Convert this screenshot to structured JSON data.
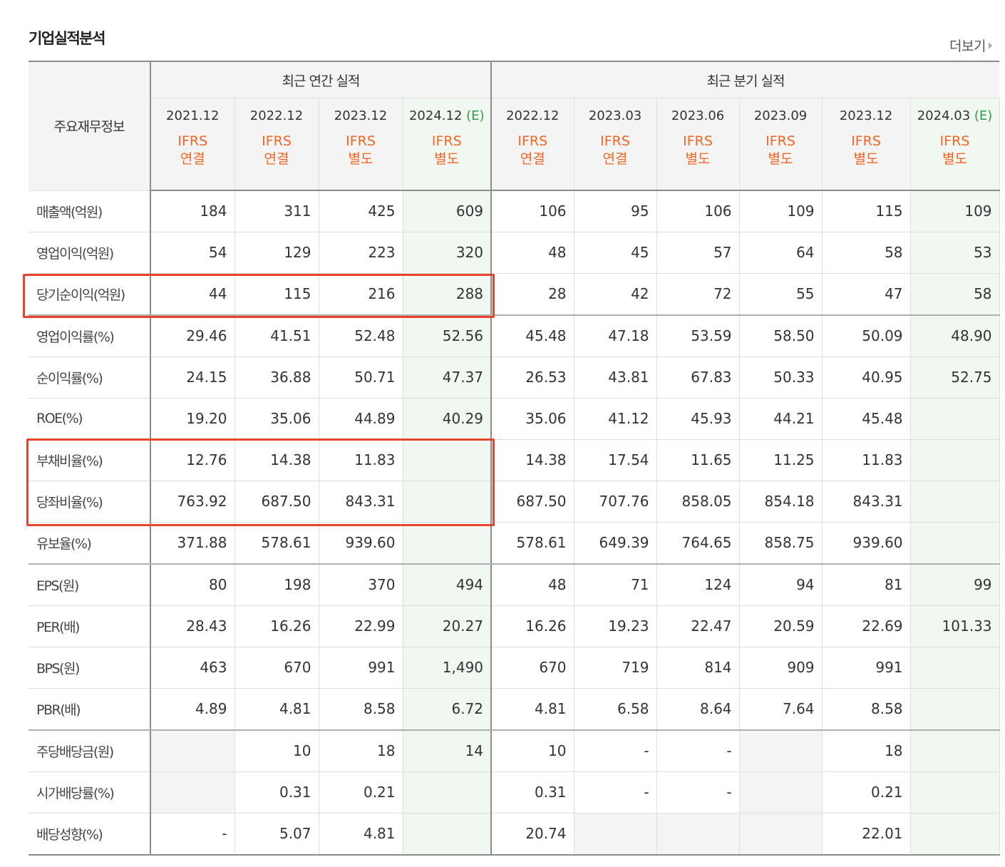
{
  "title": "기업실적분석",
  "more": "더보기",
  "header": {
    "row_label": "주요재무정보",
    "annual_group": "최근 연간 실적",
    "quarter_group": "최근 분기 실적",
    "estimate_mark": "(E)"
  },
  "columns": [
    {
      "period": "2021.12",
      "estimate": false,
      "type_top": "IFRS",
      "type_bottom": "연결"
    },
    {
      "period": "2022.12",
      "estimate": false,
      "type_top": "IFRS",
      "type_bottom": "연결"
    },
    {
      "period": "2023.12",
      "estimate": false,
      "type_top": "IFRS",
      "type_bottom": "별도"
    },
    {
      "period": "2024.12",
      "estimate": true,
      "type_top": "IFRS",
      "type_bottom": "별도"
    },
    {
      "period": "2022.12",
      "estimate": false,
      "type_top": "IFRS",
      "type_bottom": "연결"
    },
    {
      "period": "2023.03",
      "estimate": false,
      "type_top": "IFRS",
      "type_bottom": "연결"
    },
    {
      "period": "2023.06",
      "estimate": false,
      "type_top": "IFRS",
      "type_bottom": "별도"
    },
    {
      "period": "2023.09",
      "estimate": false,
      "type_top": "IFRS",
      "type_bottom": "별도"
    },
    {
      "period": "2023.12",
      "estimate": false,
      "type_top": "IFRS",
      "type_bottom": "별도"
    },
    {
      "period": "2024.03",
      "estimate": true,
      "type_top": "IFRS",
      "type_bottom": "별도"
    }
  ],
  "rows": [
    {
      "label": "매출액(억원)",
      "values": [
        "184",
        "311",
        "425",
        "609",
        "106",
        "95",
        "106",
        "109",
        "115",
        "109"
      ]
    },
    {
      "label": "영업이익(억원)",
      "values": [
        "54",
        "129",
        "223",
        "320",
        "48",
        "45",
        "57",
        "64",
        "58",
        "53"
      ]
    },
    {
      "label": "당기순이익(억원)",
      "values": [
        "44",
        "115",
        "216",
        "288",
        "28",
        "42",
        "72",
        "55",
        "47",
        "58"
      ]
    },
    {
      "label": "영업이익률(%)",
      "values": [
        "29.46",
        "41.51",
        "52.48",
        "52.56",
        "45.48",
        "47.18",
        "53.59",
        "58.50",
        "50.09",
        "48.90"
      ]
    },
    {
      "label": "순이익률(%)",
      "values": [
        "24.15",
        "36.88",
        "50.71",
        "47.37",
        "26.53",
        "43.81",
        "67.83",
        "50.33",
        "40.95",
        "52.75"
      ]
    },
    {
      "label": "ROE(%)",
      "values": [
        "19.20",
        "35.06",
        "44.89",
        "40.29",
        "35.06",
        "41.12",
        "45.93",
        "44.21",
        "45.48",
        ""
      ]
    },
    {
      "label": "부채비율(%)",
      "values": [
        "12.76",
        "14.38",
        "11.83",
        "",
        "14.38",
        "17.54",
        "11.65",
        "11.25",
        "11.83",
        ""
      ]
    },
    {
      "label": "당좌비율(%)",
      "values": [
        "763.92",
        "687.50",
        "843.31",
        "",
        "687.50",
        "707.76",
        "858.05",
        "854.18",
        "843.31",
        ""
      ]
    },
    {
      "label": "유보율(%)",
      "values": [
        "371.88",
        "578.61",
        "939.60",
        "",
        "578.61",
        "649.39",
        "764.65",
        "858.75",
        "939.60",
        ""
      ]
    },
    {
      "label": "EPS(원)",
      "values": [
        "80",
        "198",
        "370",
        "494",
        "48",
        "71",
        "124",
        "94",
        "81",
        "99"
      ]
    },
    {
      "label": "PER(배)",
      "values": [
        "28.43",
        "16.26",
        "22.99",
        "20.27",
        "16.26",
        "19.23",
        "22.47",
        "20.59",
        "22.69",
        "101.33"
      ]
    },
    {
      "label": "BPS(원)",
      "values": [
        "463",
        "670",
        "991",
        "1,490",
        "670",
        "719",
        "814",
        "909",
        "991",
        ""
      ]
    },
    {
      "label": "PBR(배)",
      "values": [
        "4.89",
        "4.81",
        "8.58",
        "6.72",
        "4.81",
        "6.58",
        "8.64",
        "7.64",
        "8.58",
        ""
      ]
    },
    {
      "label": "주당배당금(원)",
      "values": [
        "",
        "10",
        "18",
        "14",
        "10",
        "-",
        "-",
        "",
        "18",
        ""
      ]
    },
    {
      "label": "시가배당률(%)",
      "values": [
        "",
        "0.31",
        "0.21",
        "",
        "0.31",
        "-",
        "-",
        "",
        "0.21",
        ""
      ]
    },
    {
      "label": "배당성향(%)",
      "values": [
        "-",
        "5.07",
        "4.81",
        "",
        "20.74",
        "",
        "",
        "",
        "22.01",
        ""
      ]
    }
  ],
  "empty_cells": [
    [
      13,
      0
    ],
    [
      13,
      7
    ],
    [
      14,
      0
    ],
    [
      14,
      7
    ],
    [
      15,
      5
    ],
    [
      15,
      6
    ],
    [
      15,
      7
    ]
  ],
  "colors": {
    "ifrs": "#f26522",
    "estimate": "#2e9b45",
    "highlight_box": "#e8432d",
    "estimate_bg": "#f1f7f1"
  }
}
